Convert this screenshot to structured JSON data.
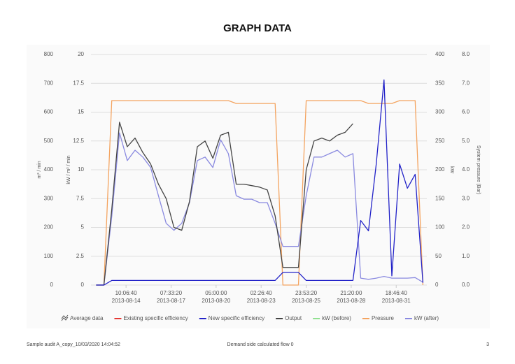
{
  "chart_data": {
    "type": "line",
    "title": "GRAPH DATA",
    "xlim": [
      "2013-08-12T04:00",
      "2013-09-02T18:00"
    ],
    "xticks": [
      {
        "value": "2013-08-14T10:06:40",
        "label": "10:06:40"
      },
      {
        "value": "2013-08-17T07:33:20",
        "label": "07:33:20"
      },
      {
        "value": "2013-08-20T05:00:00",
        "label": "05:00:00"
      },
      {
        "value": "2013-08-23T02:26:40",
        "label": "02:26:40"
      },
      {
        "value": "2013-08-25T23:53:20",
        "label": "23:53:20"
      },
      {
        "value": "2013-08-28T21:20:00",
        "label": "21:20:00"
      },
      {
        "value": "2013-08-31T18:46:40",
        "label": "18:46:40"
      }
    ],
    "xtick_dates": [
      "2013-08-14",
      "2013-08-17",
      "2013-08-20",
      "2013-08-23",
      "2013-08-25",
      "2013-08-28",
      "2013-08-31"
    ],
    "grid": true,
    "axes": [
      {
        "title": "m³ / min",
        "side": "left",
        "lim": [
          0,
          800
        ],
        "ticks": [
          0,
          100,
          200,
          300,
          400,
          500,
          600,
          700,
          800
        ]
      },
      {
        "title": "kW / m³ / min",
        "side": "left",
        "lim": [
          0,
          20
        ],
        "ticks": [
          0,
          2.5,
          5,
          7.5,
          10,
          12.5,
          15,
          17.5,
          20
        ]
      },
      {
        "title": "kW",
        "side": "right",
        "lim": [
          0,
          400
        ],
        "ticks": [
          0,
          50,
          100,
          150,
          200,
          250,
          300,
          350,
          400
        ]
      },
      {
        "title": "System pressure (Bar)",
        "side": "right",
        "lim": [
          0,
          8
        ],
        "ticks": [
          {
            "value": 0,
            "label": "0.0"
          },
          {
            "value": 1,
            "label": "1.0"
          },
          {
            "value": 2,
            "label": "2.0"
          },
          {
            "value": 3,
            "label": "3.0"
          },
          {
            "value": 4,
            "label": "4.0"
          },
          {
            "value": 5,
            "label": "5.0"
          },
          {
            "value": 6,
            "label": "6.0"
          },
          {
            "value": 7,
            "label": "7.0"
          },
          {
            "value": 8,
            "label": "8.0"
          }
        ]
      }
    ],
    "legend_toggle": "Average data",
    "x": [
      "2013-08-12T12:00",
      "2013-08-13T00:00",
      "2013-08-13T12:00",
      "2013-08-14T00:00",
      "2013-08-14T12:00",
      "2013-08-15T00:00",
      "2013-08-15T12:00",
      "2013-08-16T00:00",
      "2013-08-16T12:00",
      "2013-08-17T00:00",
      "2013-08-17T12:00",
      "2013-08-18T00:00",
      "2013-08-18T12:00",
      "2013-08-19T00:00",
      "2013-08-19T12:00",
      "2013-08-20T00:00",
      "2013-08-20T12:00",
      "2013-08-21T00:00",
      "2013-08-21T12:00",
      "2013-08-22T00:00",
      "2013-08-22T12:00",
      "2013-08-23T00:00",
      "2013-08-23T12:00",
      "2013-08-24T00:00",
      "2013-08-24T12:00",
      "2013-08-25T00:00",
      "2013-08-25T12:00",
      "2013-08-26T00:00",
      "2013-08-26T12:00",
      "2013-08-27T00:00",
      "2013-08-27T12:00",
      "2013-08-28T00:00",
      "2013-08-28T12:00",
      "2013-08-29T00:00",
      "2013-08-29T12:00",
      "2013-08-30T00:00",
      "2013-08-30T12:00",
      "2013-08-31T00:00",
      "2013-08-31T12:00",
      "2013-09-01T00:00",
      "2013-09-01T12:00",
      "2013-09-02T00:00",
      "2013-09-02T12:00"
    ],
    "series": [
      {
        "name": "Existing specific efficiency",
        "color": "#e53935",
        "axis": 1,
        "values": [
          null,
          null,
          null,
          null,
          null,
          null,
          null,
          null,
          null,
          null,
          null,
          null,
          null,
          null,
          null,
          null,
          null,
          null,
          null,
          null,
          null,
          null,
          null,
          null,
          null,
          null,
          null,
          null,
          null,
          null,
          null,
          null,
          null,
          null,
          null,
          null,
          null,
          null,
          null,
          null,
          null,
          null,
          null
        ]
      },
      {
        "name": "New specific efficiency",
        "color": "#2323c8",
        "axis": 1,
        "values": [
          0,
          0,
          0.4,
          0.4,
          0.4,
          0.4,
          0.4,
          0.4,
          0.4,
          0.4,
          0.4,
          0.4,
          0.4,
          0.4,
          0.4,
          0.4,
          0.4,
          0.4,
          0.4,
          0.4,
          0.4,
          0.4,
          0.4,
          0.4,
          1.1,
          1.1,
          1.1,
          0.4,
          0.4,
          0.4,
          0.4,
          0.4,
          0.4,
          0.4,
          5.6,
          4.7,
          10.5,
          17.8,
          0.8,
          10.5,
          8.4,
          9.6,
          0.2
        ]
      },
      {
        "name": "Output",
        "color": "#444444",
        "axis": 0,
        "values": [
          0,
          0,
          262,
          565,
          480,
          510,
          460,
          420,
          350,
          300,
          200,
          190,
          290,
          480,
          500,
          440,
          520,
          530,
          350,
          350,
          345,
          340,
          330,
          240,
          61,
          61,
          61,
          400,
          500,
          510,
          500,
          520,
          530,
          560,
          null,
          null,
          null,
          null,
          null,
          null,
          null,
          null,
          null
        ]
      },
      {
        "name": "kW (before)",
        "color": "#90e090",
        "axis": 2,
        "values": [
          null,
          null,
          null,
          null,
          null,
          null,
          null,
          null,
          null,
          null,
          null,
          null,
          null,
          null,
          null,
          null,
          null,
          null,
          null,
          null,
          null,
          null,
          null,
          null,
          null,
          null,
          null,
          null,
          null,
          null,
          null,
          null,
          null,
          null,
          null,
          null,
          null,
          null,
          null,
          null,
          null,
          null,
          null
        ]
      },
      {
        "name": "Pressure",
        "color": "#f4a460",
        "axis": 3,
        "values": [
          0,
          0,
          6.4,
          6.4,
          6.4,
          6.4,
          6.4,
          6.4,
          6.4,
          6.4,
          6.4,
          6.4,
          6.4,
          6.4,
          6.4,
          6.4,
          6.4,
          6.4,
          6.3,
          6.3,
          6.3,
          6.3,
          6.3,
          6.3,
          0,
          0,
          0,
          6.4,
          6.4,
          6.4,
          6.4,
          6.4,
          6.4,
          6.4,
          6.4,
          6.3,
          6.3,
          6.3,
          6.3,
          6.4,
          6.4,
          6.4,
          0
        ]
      },
      {
        "name": "kW (after)",
        "color": "#8a8ae0",
        "axis": 2,
        "values": [
          0,
          0,
          119,
          264,
          216,
          234,
          222,
          204,
          155,
          107,
          95,
          107,
          143,
          216,
          222,
          204,
          252,
          228,
          155,
          149,
          149,
          143,
          143,
          107,
          67,
          67,
          67,
          155,
          222,
          222,
          228,
          234,
          222,
          228,
          12,
          10,
          12,
          15,
          12,
          12,
          12,
          13,
          5
        ]
      }
    ]
  },
  "footer": {
    "left": "Sample audit A_copy_10/03/2020 14:04:52",
    "center": "Demand side calculated flow 0",
    "page": "3"
  }
}
